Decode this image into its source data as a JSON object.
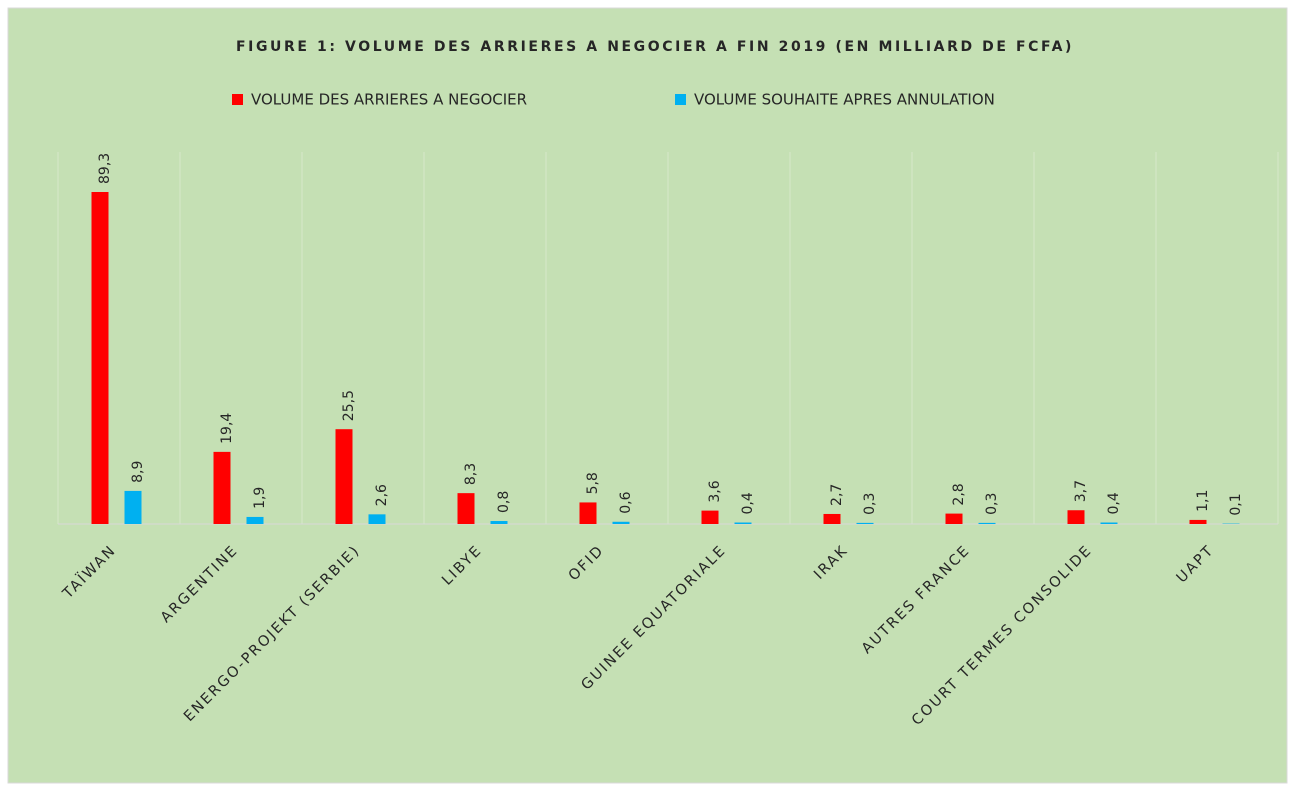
{
  "chart_data": {
    "type": "bar",
    "title": "FIGURE 1: VOLUME DES ARRIERES A NEGOCIER A FIN 2019 (EN MILLIARD DE FCFA)",
    "categories": [
      "TAÏWAN",
      "ARGENTINE",
      "ENERGO-PROJEKT (SERBIE)",
      "LIBYE",
      "OFID",
      "GUINEE EQUATORIALE",
      "IRAK",
      "AUTRES FRANCE",
      "COURT TERMES CONSOLIDE",
      "UAPT"
    ],
    "series": [
      {
        "name": "VOLUME DES ARRIERES A  NEGOCIER",
        "color": "#ff0000",
        "values": [
          89.3,
          19.4,
          25.5,
          8.3,
          5.8,
          3.6,
          2.7,
          2.8,
          3.7,
          1.1
        ],
        "value_labels": [
          "89,3",
          "19,4",
          "25,5",
          "8,3",
          "5,8",
          "3,6",
          "2,7",
          "2,8",
          "3,7",
          "1,1"
        ]
      },
      {
        "name": "VOLUME SOUHAITE APRES ANNULATION",
        "color": "#00b0f0",
        "values": [
          8.9,
          1.9,
          2.6,
          0.8,
          0.6,
          0.4,
          0.3,
          0.3,
          0.4,
          0.1
        ],
        "value_labels": [
          "8,9",
          "1,9",
          "2,6",
          "0,8",
          "0,6",
          "0,4",
          "0,3",
          "0,3",
          "0,4",
          "0,1"
        ]
      }
    ],
    "grid": true
  }
}
